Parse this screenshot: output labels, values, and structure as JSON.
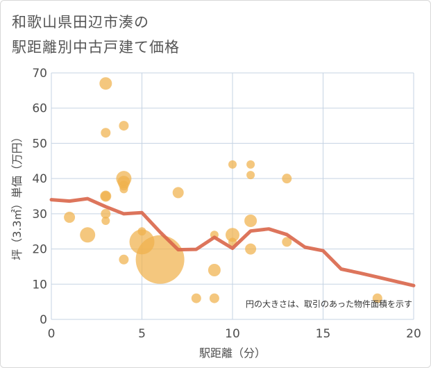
{
  "title_lines": [
    "和歌山県田辺市湊の",
    "駅距離別中古戸建て価格"
  ],
  "chart_data": {
    "type": "scatter",
    "title": "和歌山県田辺市湊の駅距離別中古戸建て価格",
    "xlabel": "駅距離（分）",
    "ylabel": "坪（3.3㎡）単価（万円）",
    "xlim": [
      0,
      20
    ],
    "ylim": [
      0,
      70
    ],
    "x_ticks": [
      0,
      5,
      10,
      15,
      20
    ],
    "y_ticks": [
      0,
      10,
      20,
      30,
      40,
      50,
      60,
      70
    ],
    "grid": true,
    "note": "円の大きさは、取引のあった物件面積を示す",
    "bubble_color": "#f0b24c",
    "line_color": "#d9664a",
    "points": [
      {
        "x": 1,
        "y": 29,
        "size": 8
      },
      {
        "x": 2,
        "y": 24,
        "size": 11
      },
      {
        "x": 3,
        "y": 67,
        "size": 9
      },
      {
        "x": 3,
        "y": 53,
        "size": 7
      },
      {
        "x": 3,
        "y": 35,
        "size": 8
      },
      {
        "x": 3,
        "y": 35,
        "size": 7
      },
      {
        "x": 3,
        "y": 30,
        "size": 7
      },
      {
        "x": 3,
        "y": 28,
        "size": 6
      },
      {
        "x": 4,
        "y": 55,
        "size": 7
      },
      {
        "x": 4,
        "y": 40,
        "size": 11
      },
      {
        "x": 4,
        "y": 39,
        "size": 9
      },
      {
        "x": 4,
        "y": 38,
        "size": 7
      },
      {
        "x": 4,
        "y": 37,
        "size": 6
      },
      {
        "x": 4,
        "y": 17,
        "size": 7
      },
      {
        "x": 5,
        "y": 25,
        "size": 6
      },
      {
        "x": 5,
        "y": 22,
        "size": 18
      },
      {
        "x": 6,
        "y": 17,
        "size": 35
      },
      {
        "x": 7,
        "y": 36,
        "size": 8
      },
      {
        "x": 8,
        "y": 6,
        "size": 7
      },
      {
        "x": 9,
        "y": 24,
        "size": 6
      },
      {
        "x": 9,
        "y": 14,
        "size": 9
      },
      {
        "x": 9,
        "y": 6,
        "size": 7
      },
      {
        "x": 10,
        "y": 44,
        "size": 6
      },
      {
        "x": 10,
        "y": 24,
        "size": 10
      },
      {
        "x": 10,
        "y": 22,
        "size": 6
      },
      {
        "x": 11,
        "y": 44,
        "size": 6
      },
      {
        "x": 11,
        "y": 41,
        "size": 6
      },
      {
        "x": 11,
        "y": 28,
        "size": 9
      },
      {
        "x": 11,
        "y": 20,
        "size": 8
      },
      {
        "x": 13,
        "y": 40,
        "size": 7
      },
      {
        "x": 13,
        "y": 22,
        "size": 7
      },
      {
        "x": 18,
        "y": 6,
        "size": 7
      }
    ],
    "trend_line": {
      "x": [
        0,
        1,
        2,
        3,
        4,
        5,
        6,
        7,
        8,
        9,
        10,
        11,
        12,
        13,
        14,
        15,
        16,
        17,
        18,
        19,
        20
      ],
      "y": [
        34,
        33.6,
        34.3,
        32,
        30,
        30.3,
        24.8,
        19.8,
        19.9,
        23.3,
        20.2,
        25.1,
        25.7,
        24.1,
        20.5,
        19.5,
        14.3,
        13.2,
        12,
        10.8,
        9.6
      ]
    }
  }
}
